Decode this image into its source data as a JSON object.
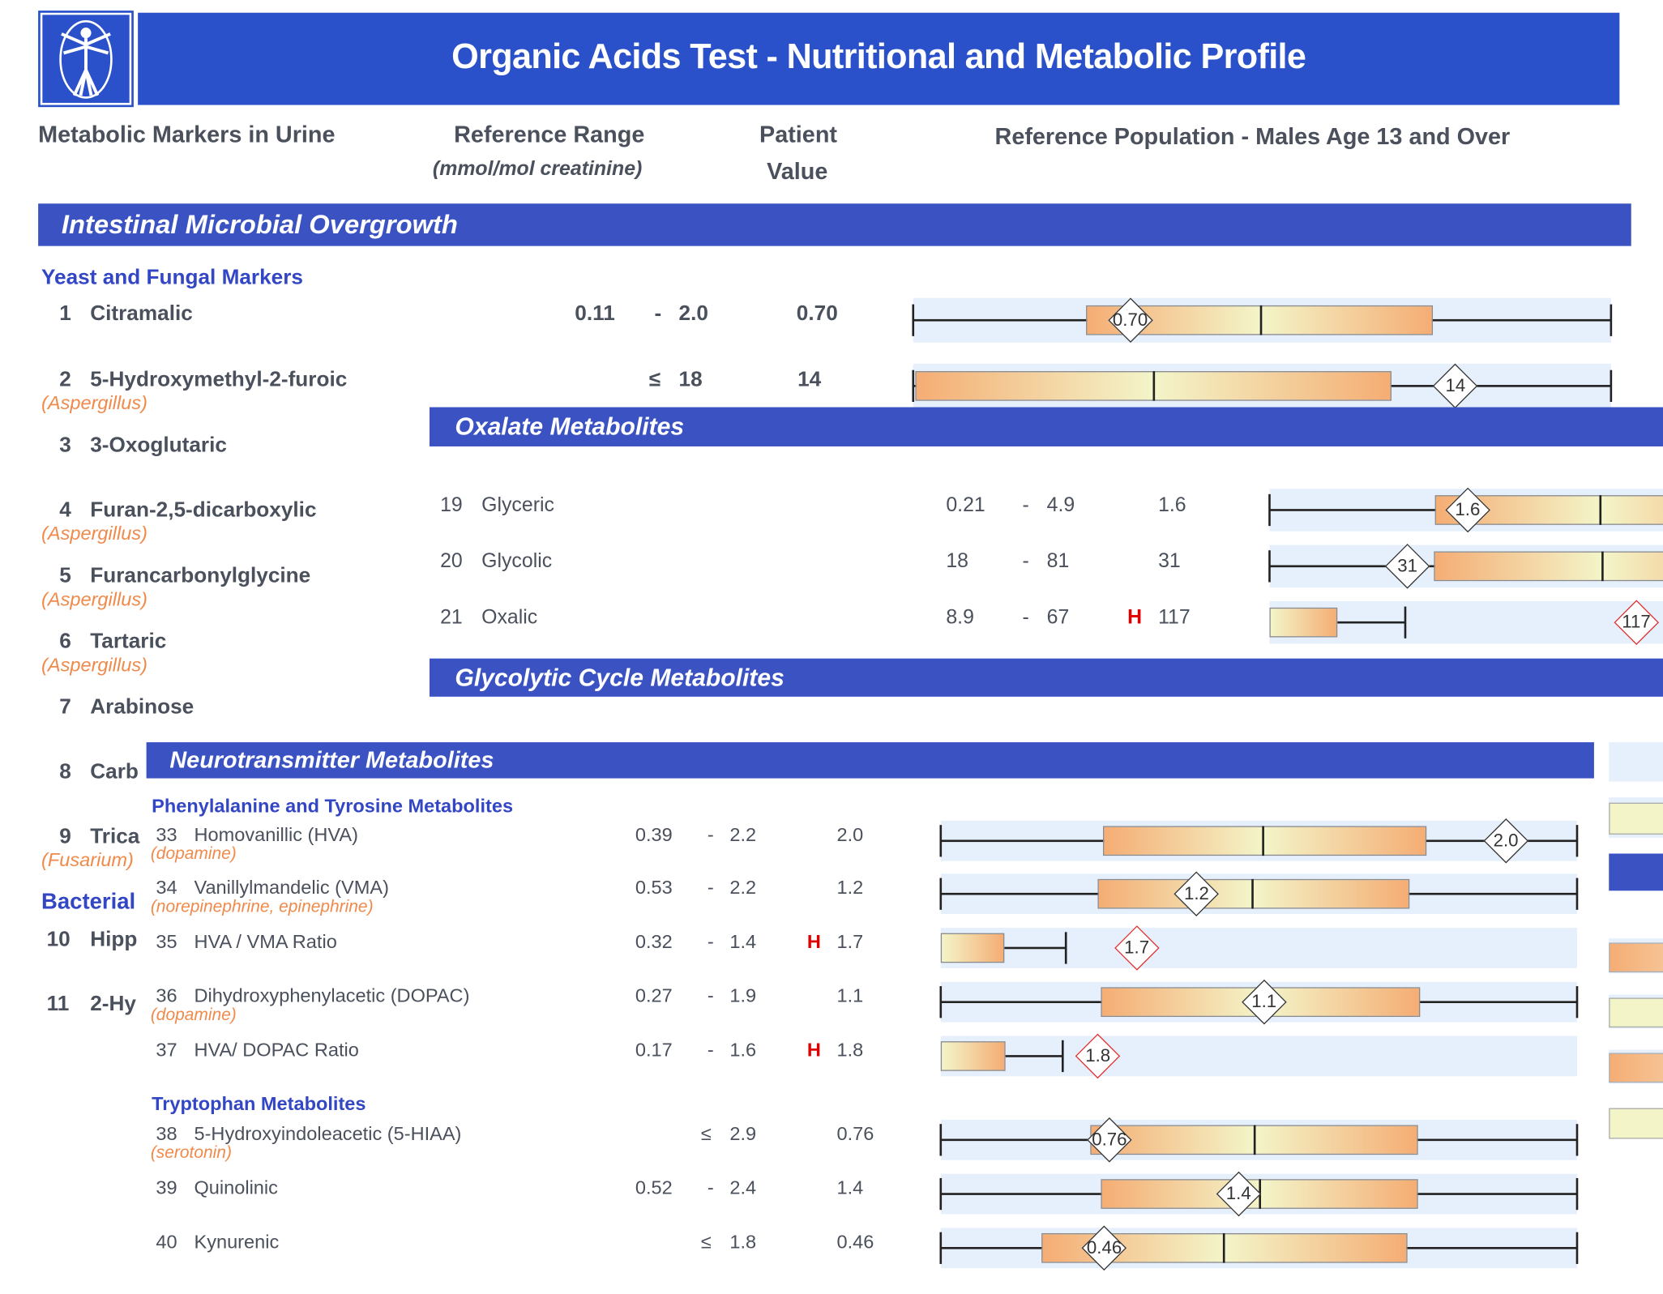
{
  "header": {
    "title": "Organic Acids Test - Nutritional and Metabolic Profile",
    "col_markers": "Metabolic Markers in Urine",
    "col_range": "Reference Range",
    "col_range_unit": "(mmol/mol creatinine)",
    "col_patient_1": "Patient",
    "col_patient_2": "Value",
    "col_population": "Reference Population - Males Age 13 and Over"
  },
  "colors": {
    "title_bar": "#2a51c9",
    "section_bar": "#3a52c2",
    "subheader": "#3346c4",
    "organism": "#f08a4b",
    "flag": "#e00000",
    "band": "#e6effc",
    "box_orange": "#f5ad74",
    "box_yellow": "#f3f5c9"
  },
  "intestinal": {
    "title": "Intestinal Microbial Overgrowth",
    "yeast_header": "Yeast and Fungal Markers",
    "bacterial_header": "Bacterial",
    "rows": [
      {
        "num": "1",
        "name": "Citramalic",
        "sub": "",
        "low": "0.11",
        "sep": "-",
        "high": "2.0",
        "flag": "",
        "value": "0.70",
        "scale": {
          "box": [
            24.8,
            74.5
          ],
          "median": 49.8,
          "whisker": [
            0,
            100
          ],
          "marker": 31.1,
          "style": "full"
        }
      },
      {
        "num": "2",
        "name": "5-Hydroxymethyl-2-furoic",
        "sub": "(Aspergillus)",
        "low": "",
        "sep": "≤",
        "high": "18",
        "flag": "",
        "value": "14",
        "scale": {
          "box": [
            0.3,
            68.6
          ],
          "median": 34.5,
          "whisker": [
            0,
            100
          ],
          "marker": 77.7,
          "style": "full"
        }
      },
      {
        "num": "3",
        "name": "3-Oxoglutaric",
        "sub": ""
      },
      {
        "num": "4",
        "name": "Furan-2,5-dicarboxylic",
        "sub": "(Aspergillus)"
      },
      {
        "num": "5",
        "name": "Furancarbonylglycine",
        "sub": "(Aspergillus)"
      },
      {
        "num": "6",
        "name": "Tartaric",
        "sub": "(Aspergillus)"
      },
      {
        "num": "7",
        "name": "Arabinose",
        "sub": ""
      },
      {
        "num": "8",
        "name": "Carb",
        "sub": ""
      },
      {
        "num": "9",
        "name": "Trica",
        "sub": "(Fusarium)"
      },
      {
        "num": "10",
        "name": "Hipp",
        "sub": ""
      },
      {
        "num": "11",
        "name": "2-Hy",
        "sub": ""
      }
    ]
  },
  "oxalate": {
    "title": "Oxalate Metabolites",
    "rows": [
      {
        "num": "19",
        "name": "Glyceric",
        "low": "0.21",
        "sep": "-",
        "high": "4.9",
        "flag": "",
        "value": "1.6",
        "scale": {
          "box": [
            23.6,
            71.7
          ],
          "median": 47.3,
          "whisker": [
            0,
            100
          ],
          "marker": 28.3,
          "style": "full"
        }
      },
      {
        "num": "20",
        "name": "Glycolic",
        "low": "18",
        "sep": "-",
        "high": "81",
        "flag": "",
        "value": "31",
        "scale": {
          "box": [
            23.5,
            71.7
          ],
          "median": 47.6,
          "whisker": [
            0,
            100
          ],
          "marker": 19.7,
          "style": "full"
        }
      },
      {
        "num": "21",
        "name": "Oxalic",
        "low": "8.9",
        "sep": "-",
        "high": "67",
        "flag": "H",
        "value": "117",
        "scale": {
          "box": [
            0,
            9.7
          ],
          "median": null,
          "whisker": [
            9.7,
            19.4
          ],
          "marker": 52.4,
          "style": "half"
        }
      }
    ]
  },
  "glycolytic": {
    "title": "Glycolytic Cycle Metabolites"
  },
  "neuro": {
    "title": "Neurotransmitter Metabolites",
    "phe_header": "Phenylalanine and Tyrosine Metabolites",
    "trp_header": "Tryptophan Metabolites",
    "rows": [
      {
        "num": "33",
        "name": "Homovanillic (HVA)",
        "sub": "(dopamine)",
        "low": "0.39",
        "sep": "-",
        "high": "2.2",
        "flag": "",
        "value": "2.0",
        "scale": {
          "box": [
            25.5,
            76.3
          ],
          "median": 50.7,
          "whisker": [
            0,
            100
          ],
          "marker": 88.8,
          "style": "full"
        }
      },
      {
        "num": "34",
        "name": "Vanillylmandelic (VMA)",
        "sub": "(norepinephrine, epinephrine)",
        "low": "0.53",
        "sep": "-",
        "high": "2.2",
        "flag": "",
        "value": "1.2",
        "scale": {
          "box": [
            24.7,
            73.7
          ],
          "median": 49.0,
          "whisker": [
            0,
            100
          ],
          "marker": 40.2,
          "style": "full"
        }
      },
      {
        "num": "35",
        "name": "HVA / VMA Ratio",
        "sub": "",
        "low": "0.32",
        "sep": "-",
        "high": "1.4",
        "flag": "H",
        "value": "1.7",
        "scale": {
          "box": [
            0,
            10
          ],
          "median": null,
          "whisker": [
            10,
            19.7
          ],
          "marker": 30.8,
          "style": "half"
        }
      },
      {
        "num": "36",
        "name": "Dihydroxyphenylacetic (DOPAC)",
        "sub": "(dopamine)",
        "low": "0.27",
        "sep": "-",
        "high": "1.9",
        "flag": "",
        "value": "1.1",
        "scale": {
          "box": [
            25.2,
            75.3
          ],
          "median": 50.7,
          "whisker": [
            0,
            100
          ],
          "marker": 50.8,
          "style": "full"
        }
      },
      {
        "num": "37",
        "name": "HVA/ DOPAC Ratio",
        "sub": "",
        "low": "0.17",
        "sep": "-",
        "high": "1.6",
        "flag": "H",
        "value": "1.8",
        "scale": {
          "box": [
            0,
            10.2
          ],
          "median": null,
          "whisker": [
            10.2,
            19.2
          ],
          "marker": 24.7,
          "style": "half"
        }
      },
      {
        "num": "38",
        "name": "5-Hydroxyindoleacetic (5-HIAA)",
        "sub": "(serotonin)",
        "low": "",
        "sep": "≤",
        "high": "2.9",
        "flag": "",
        "value": "0.76",
        "scale": {
          "box": [
            23.5,
            75.0
          ],
          "median": 49.3,
          "whisker": [
            0,
            100
          ],
          "marker": 26.5,
          "style": "full"
        }
      },
      {
        "num": "39",
        "name": "Quinolinic",
        "sub": "",
        "low": "0.52",
        "sep": "-",
        "high": "2.4",
        "flag": "",
        "value": "1.4",
        "scale": {
          "box": [
            25.2,
            75.0
          ],
          "median": 50.2,
          "whisker": [
            0,
            100
          ],
          "marker": 46.8,
          "style": "full"
        }
      },
      {
        "num": "40",
        "name": "Kynurenic",
        "sub": "",
        "low": "",
        "sep": "≤",
        "high": "1.8",
        "flag": "",
        "value": "0.46",
        "scale": {
          "box": [
            15.8,
            73.3
          ],
          "median": 44.5,
          "whisker": [
            0,
            100
          ],
          "marker": 25.7,
          "style": "full"
        }
      }
    ]
  }
}
